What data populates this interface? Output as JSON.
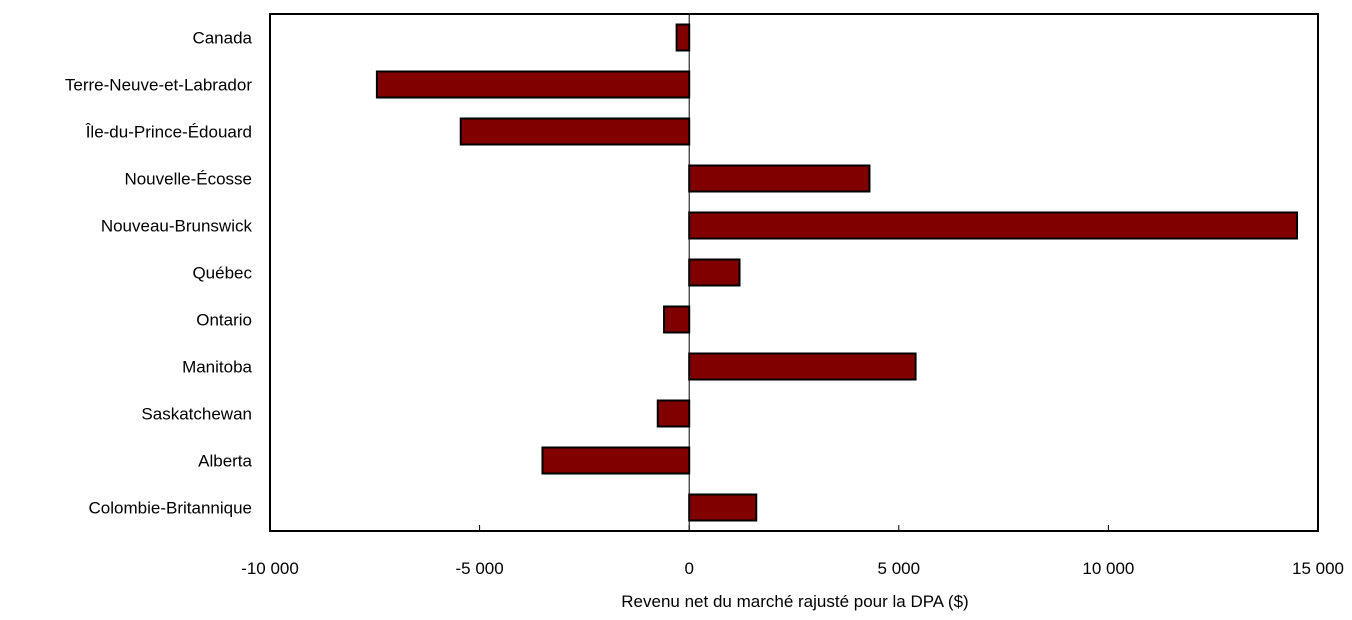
{
  "chart_data": {
    "type": "bar",
    "orientation": "horizontal",
    "categories": [
      "Canada",
      "Terre-Neuve-et-Labrador",
      "Île-du-Prince-Édouard",
      "Nouvelle-Écosse",
      "Nouveau-Brunswick",
      "Québec",
      "Ontario",
      "Manitoba",
      "Saskatchewan",
      "Alberta",
      "Colombie-Britannique"
    ],
    "values": [
      -300,
      -7450,
      -5450,
      4300,
      14500,
      1200,
      -600,
      5400,
      -750,
      -3500,
      1600
    ],
    "xlabel": "Revenu net du marché rajusté pour la DPA ($)",
    "xlim": [
      -10000,
      15000
    ],
    "xticks": [
      -10000,
      -5000,
      0,
      5000,
      10000,
      15000
    ],
    "xtick_labels": [
      "-10 000",
      "-5 000",
      "0",
      "5 000",
      "10 000",
      "15 000"
    ],
    "grid": false,
    "legend": "none",
    "bar_color": "#800000",
    "bar_edge_color": "#000000"
  }
}
